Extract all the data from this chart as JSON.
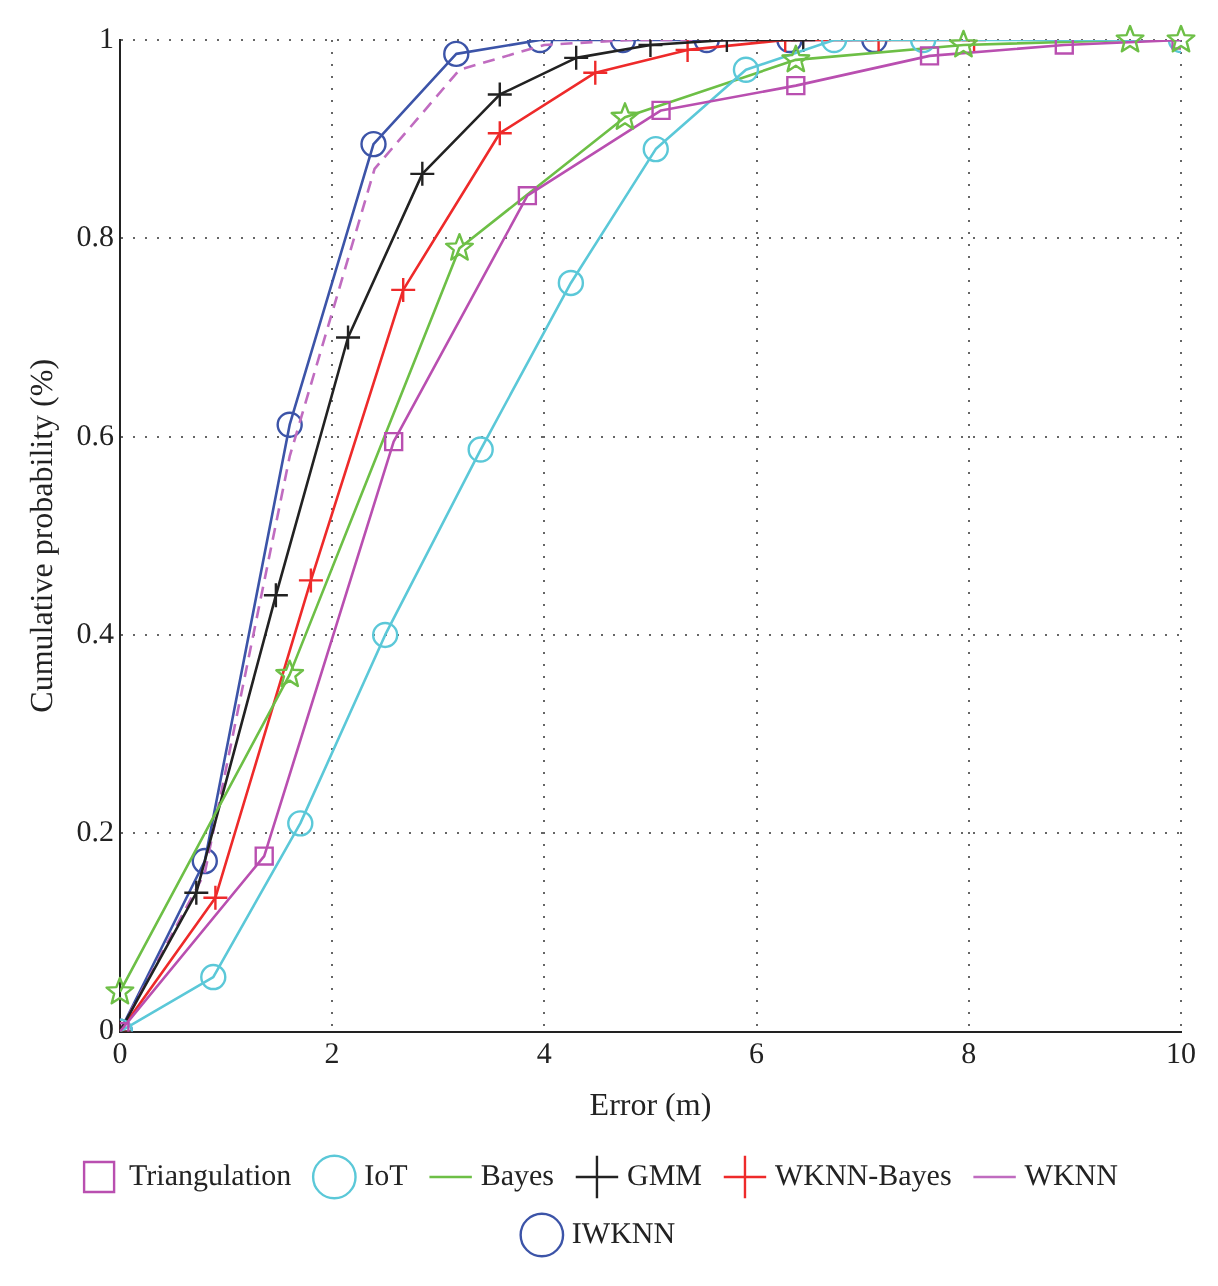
{
  "chart_data": {
    "type": "line",
    "xlabel": "Error (m)",
    "ylabel": "Cumulative probability (%)",
    "xlim": [
      0,
      10
    ],
    "xticks": [
      0,
      2,
      4,
      6,
      8,
      10
    ],
    "ylim": [
      0,
      1
    ],
    "yticks": [
      0,
      0.2,
      0.4,
      0.6,
      0.8,
      1
    ],
    "grid": true,
    "legend": "bottom",
    "line_style": "solid",
    "series": [
      {
        "name": "Triangulation",
        "color": "#b94fb0",
        "marker": "square",
        "x": [
          0,
          1.36,
          2.58,
          3.84,
          5.1,
          6.37,
          7.63,
          8.9,
          10
        ],
        "values": [
          0,
          0.177,
          0.595,
          0.843,
          0.929,
          0.954,
          0.984,
          0.995,
          1
        ]
      },
      {
        "name": "IoT",
        "color": "#5bc8d8",
        "marker": "circle",
        "x": [
          0,
          0.88,
          1.7,
          2.5,
          3.4,
          4.25,
          5.05,
          5.9,
          6.73,
          7.57,
          10
        ],
        "values": [
          0,
          0.055,
          0.21,
          0.4,
          0.587,
          0.755,
          0.89,
          0.97,
          1,
          1,
          1
        ]
      },
      {
        "name": "Bayes",
        "color": "#6dbf46",
        "marker": "star",
        "x": [
          0,
          1.6,
          3.2,
          4.76,
          6.37,
          7.95,
          9.52,
          10
        ],
        "values": [
          0.04,
          0.36,
          0.79,
          0.922,
          0.98,
          0.995,
          1,
          1
        ]
      },
      {
        "name": "GMM",
        "color": "#222222",
        "marker": "cross",
        "x": [
          0,
          0.72,
          1.47,
          2.15,
          2.85,
          3.58,
          4.3,
          5.0,
          5.72,
          6.44
        ],
        "values": [
          0,
          0.14,
          0.44,
          0.7,
          0.865,
          0.945,
          0.982,
          0.995,
          1,
          1
        ]
      },
      {
        "name": "WKNN-Bayes",
        "color": "#ee2a2a",
        "marker": "cross",
        "x": [
          0,
          0.9,
          1.8,
          2.67,
          3.58,
          4.48,
          5.35,
          6.27,
          7.15,
          8.05
        ],
        "values": [
          0,
          0.135,
          0.455,
          0.748,
          0.906,
          0.967,
          0.99,
          1,
          1,
          1
        ]
      },
      {
        "name": "WKNN",
        "color": "#c06cc0",
        "marker": "none",
        "line_style": "dashed",
        "x": [
          0,
          0.8,
          1.6,
          2.4,
          3.2,
          4.0,
          4.8,
          7.1
        ],
        "values": [
          0,
          0.16,
          0.58,
          0.87,
          0.97,
          0.995,
          1,
          1
        ]
      },
      {
        "name": "IWKNN",
        "color": "#3c54a8",
        "marker": "circle",
        "x": [
          0,
          0.8,
          1.6,
          2.39,
          3.17,
          3.96,
          4.74,
          5.53,
          6.31,
          7.11
        ],
        "values": [
          0,
          0.172,
          0.612,
          0.895,
          0.986,
          1,
          1,
          1,
          1,
          1
        ]
      }
    ]
  }
}
